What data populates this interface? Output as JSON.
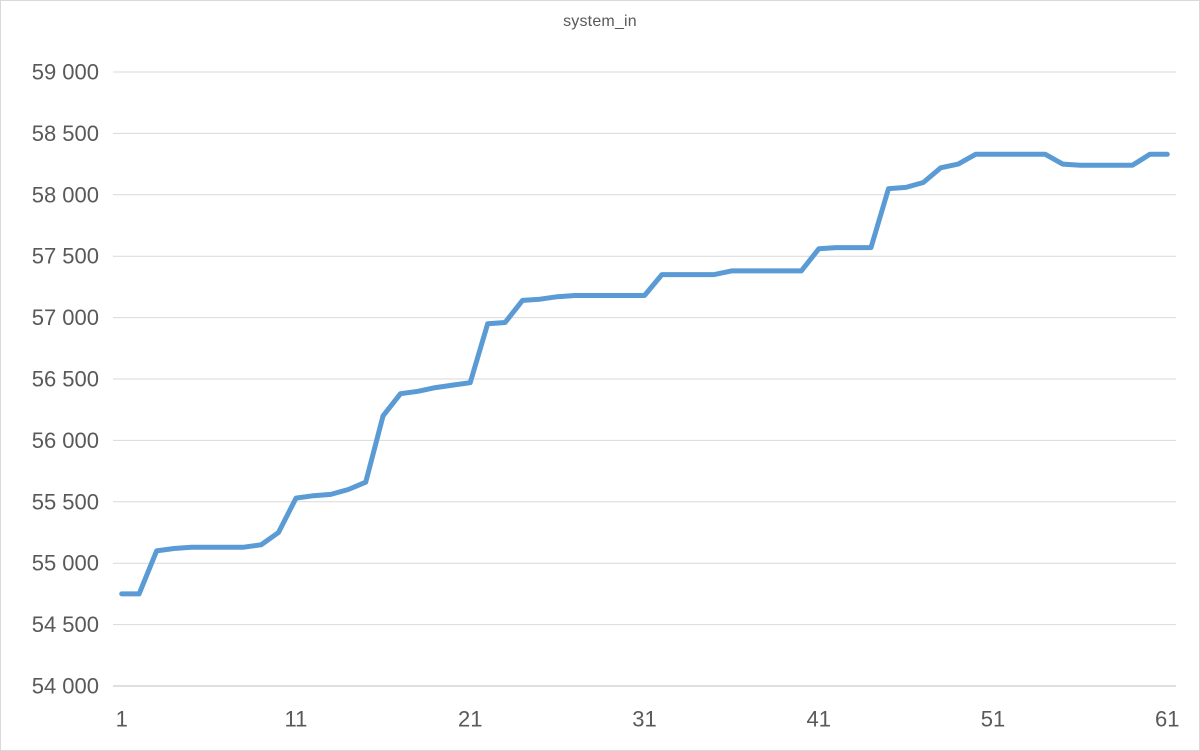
{
  "title": "system_in",
  "colors": {
    "line": "#5B9BD5",
    "grid": "#D9D9D9",
    "axis": "#BFBFBF",
    "text": "#595959",
    "background": "#FFFFFF"
  },
  "chart_data": {
    "type": "line",
    "title": "system_in",
    "x_start": 1,
    "values": [
      54750,
      54750,
      55100,
      55120,
      55130,
      55130,
      55130,
      55130,
      55150,
      55250,
      55530,
      55550,
      55560,
      55600,
      55660,
      56200,
      56380,
      56400,
      56430,
      56450,
      56470,
      56950,
      56960,
      57140,
      57150,
      57170,
      57180,
      57180,
      57180,
      57180,
      57180,
      57350,
      57350,
      57350,
      57350,
      57380,
      57380,
      57380,
      57380,
      57380,
      57560,
      57570,
      57570,
      57570,
      58050,
      58060,
      58100,
      58220,
      58250,
      58330,
      58330,
      58330,
      58330,
      58330,
      58250,
      58240,
      58240,
      58240,
      58240,
      58330,
      58330
    ],
    "xticks": [
      1,
      11,
      21,
      31,
      41,
      51,
      61
    ],
    "yticks": [
      54000,
      54500,
      55000,
      55500,
      56000,
      56500,
      57000,
      57500,
      58000,
      58500,
      59000
    ],
    "ytick_labels": [
      "54 000",
      "54 500",
      "55 000",
      "55 500",
      "56 000",
      "56 500",
      "57 000",
      "57 500",
      "58 000",
      "58 500",
      "59 000"
    ],
    "xlim": [
      1,
      61
    ],
    "ylim": [
      54000,
      59000
    ],
    "xlabel": "",
    "ylabel": "",
    "grid": "horizontal",
    "legend": "none"
  }
}
